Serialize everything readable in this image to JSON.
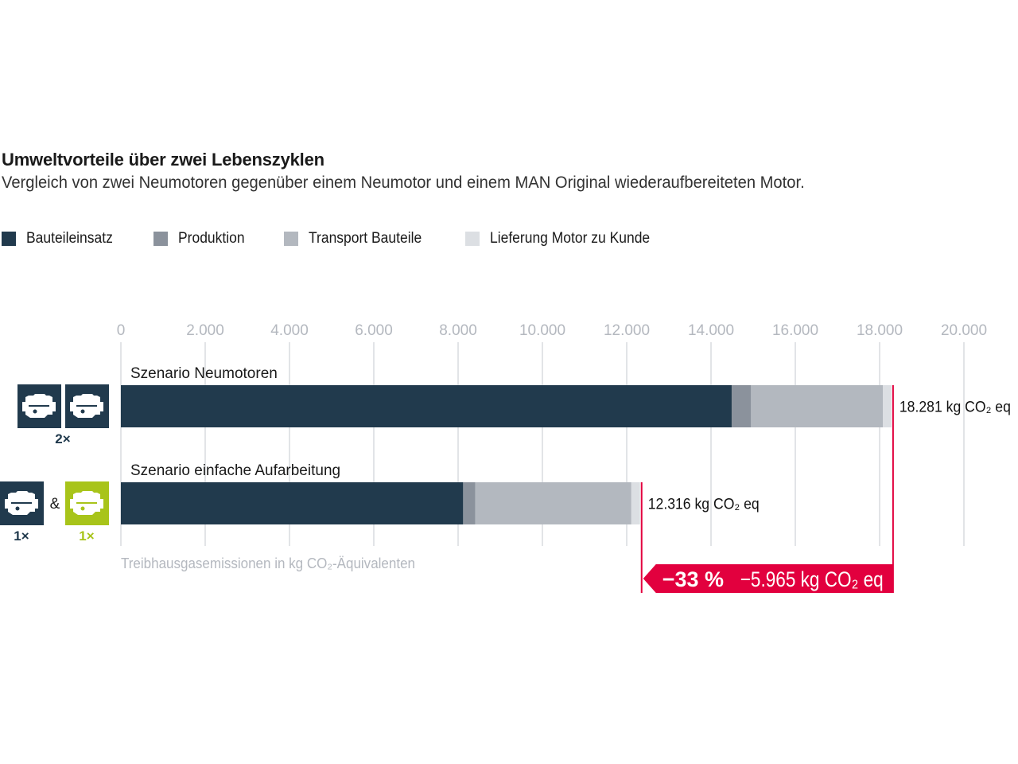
{
  "colors": {
    "bauteileinsatz": "#213a4d",
    "produktion": "#8b929c",
    "transport": "#b3b8bf",
    "lieferung": "#dcdfe3",
    "accent": "#e2003e",
    "grid": "#e2e4e7",
    "green": "#a8c41a"
  },
  "chart_data": {
    "type": "bar",
    "orientation": "horizontal",
    "stacked": true,
    "title": "Umweltvorteile über zwei Lebenszyklen",
    "subtitle": "Vergleich von zwei Neumotoren gegenüber einem Neumotor und einem MAN Original wiederaufbereiteten Motor.",
    "xlabel": "Treibhausgasemissionen in kg CO₂-Äquivalenten",
    "xlim": [
      0,
      20000
    ],
    "grid": true,
    "legend_position": "top-left",
    "ticks": [
      {
        "value": 0,
        "label": "0"
      },
      {
        "value": 2000,
        "label": "2.000"
      },
      {
        "value": 4000,
        "label": "4.000"
      },
      {
        "value": 6000,
        "label": "6.000"
      },
      {
        "value": 8000,
        "label": "8.000"
      },
      {
        "value": 10000,
        "label": "10.000"
      },
      {
        "value": 12000,
        "label": "12.000"
      },
      {
        "value": 14000,
        "label": "14.000"
      },
      {
        "value": 16000,
        "label": "16.000"
      },
      {
        "value": 18000,
        "label": "18.000"
      },
      {
        "value": 20000,
        "label": "20.000"
      }
    ],
    "series": [
      {
        "name": "Bauteileinsatz",
        "color_key": "bauteileinsatz"
      },
      {
        "name": "Produktion",
        "color_key": "produktion"
      },
      {
        "name": "Transport Bauteile",
        "color_key": "transport"
      },
      {
        "name": "Lieferung Motor zu Kunde",
        "color_key": "lieferung"
      }
    ],
    "categories": [
      {
        "label": "Szenario Neumotoren",
        "values": [
          14490,
          460,
          3130,
          201
        ],
        "total": 18281,
        "total_label": "18.281 kg CO₂ eq",
        "icon": "engine-icon",
        "icons": [
          "engine-icon",
          "engine-icon"
        ],
        "multiplier": "2×"
      },
      {
        "label": "Szenario einfache Aufarbeitung",
        "values": [
          8120,
          290,
          3700,
          206
        ],
        "total": 12316,
        "total_label": "12.316 kg CO₂ eq",
        "icon": "engine-icon",
        "icons": [
          "engine-icon",
          "remanufactured-engine-icon"
        ],
        "ampersand": "&",
        "multipliers": [
          "1×",
          "1×"
        ]
      }
    ],
    "difference": {
      "percent": -33,
      "percent_label": "−33 %",
      "value": -5965,
      "value_label": "−5.965 kg CO₂ eq"
    }
  }
}
